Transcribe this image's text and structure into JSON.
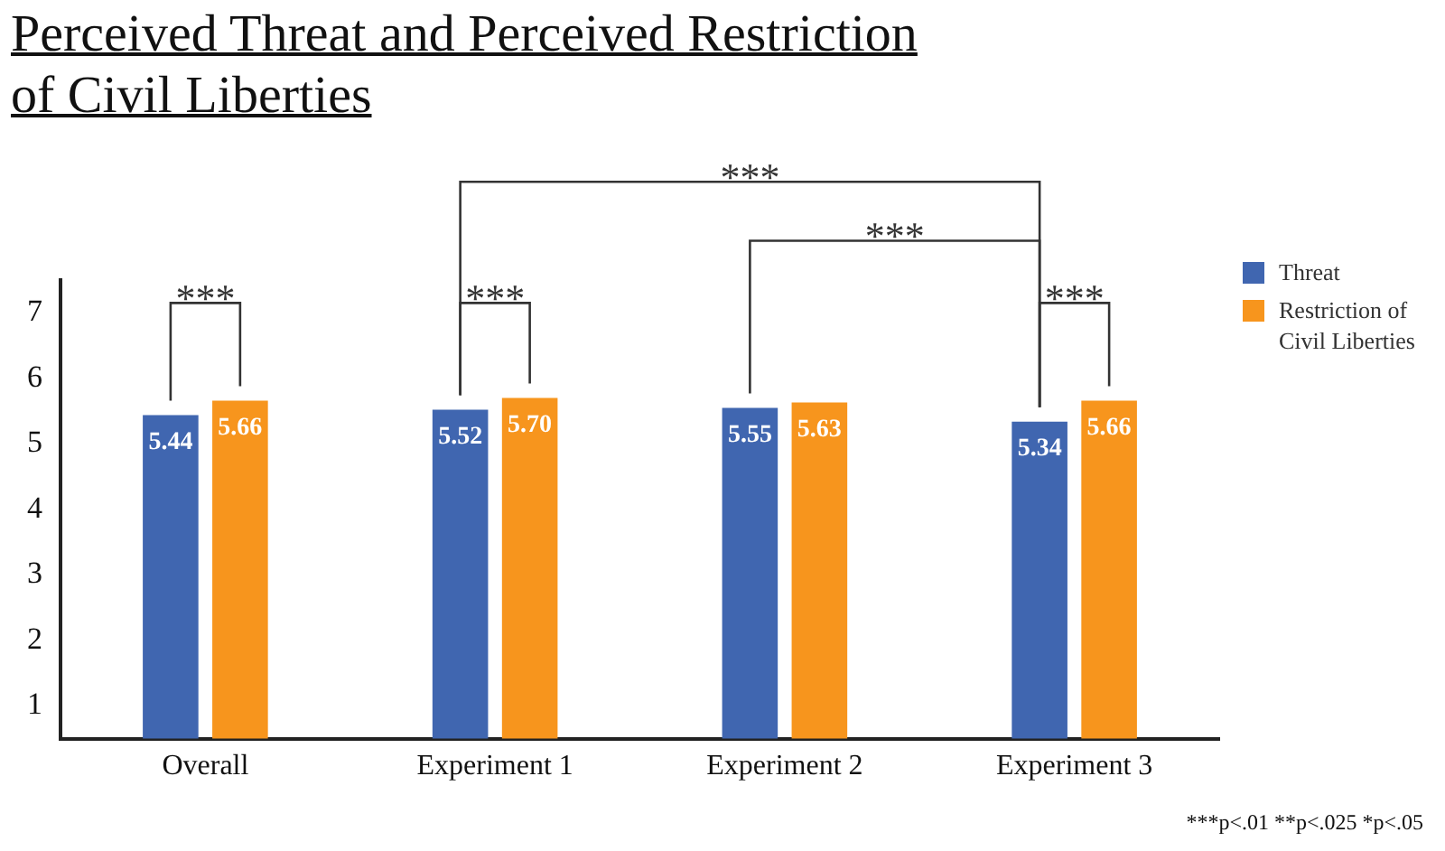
{
  "chart_data": {
    "type": "bar",
    "title": "Perceived Threat and Perceived Restriction of Civil Liberties",
    "categories": [
      "Overall",
      "Experiment 1",
      "Experiment 2",
      "Experiment 3"
    ],
    "series": [
      {
        "name": "Threat",
        "color": "#4066b0",
        "values": [
          5.44,
          5.52,
          5.55,
          5.34
        ],
        "value_labels": [
          "5.44",
          "5.52",
          "5.55",
          "5.34"
        ]
      },
      {
        "name": "Restriction of Civil Liberties",
        "color": "#f7951d",
        "values": [
          5.66,
          5.7,
          5.63,
          5.66
        ],
        "value_labels": [
          "5.66",
          "5.70",
          "5.63",
          "5.66"
        ]
      }
    ],
    "ylim": [
      0.5,
      7.5
    ],
    "yticks": [
      1,
      2,
      3,
      4,
      5,
      6,
      7
    ],
    "grid": false,
    "legend": "top right",
    "annotations": [
      "***",
      "***",
      "***",
      "***",
      "***p<.01 **p<.025 *p<.05"
    ]
  }
}
